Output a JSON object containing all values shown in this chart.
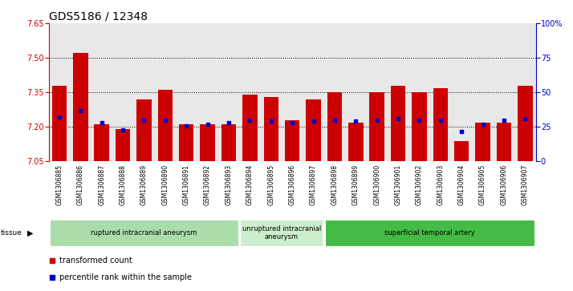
{
  "title": "GDS5186 / 12348",
  "samples": [
    "GSM1306885",
    "GSM1306886",
    "GSM1306887",
    "GSM1306888",
    "GSM1306889",
    "GSM1306890",
    "GSM1306891",
    "GSM1306892",
    "GSM1306893",
    "GSM1306894",
    "GSM1306895",
    "GSM1306896",
    "GSM1306897",
    "GSM1306898",
    "GSM1306899",
    "GSM1306900",
    "GSM1306901",
    "GSM1306902",
    "GSM1306903",
    "GSM1306904",
    "GSM1306905",
    "GSM1306906",
    "GSM1306907"
  ],
  "bar_values": [
    7.38,
    7.52,
    7.21,
    7.19,
    7.32,
    7.36,
    7.21,
    7.21,
    7.21,
    7.34,
    7.33,
    7.23,
    7.32,
    7.35,
    7.22,
    7.35,
    7.38,
    7.35,
    7.37,
    7.14,
    7.22,
    7.22,
    7.38
  ],
  "percentile_values": [
    32,
    37,
    28,
    23,
    30,
    30,
    26,
    27,
    28,
    30,
    29,
    28,
    29,
    30,
    29,
    30,
    31,
    30,
    30,
    22,
    27,
    30,
    31
  ],
  "bar_color": "#cc0000",
  "blue_color": "#0000cc",
  "ymin": 7.05,
  "ymax": 7.65,
  "yticks": [
    7.05,
    7.2,
    7.35,
    7.5,
    7.65
  ],
  "y2ticks": [
    0,
    25,
    50,
    75,
    100
  ],
  "y2labels": [
    "0",
    "25",
    "50",
    "75",
    "100%"
  ],
  "groups": [
    {
      "label": "ruptured intracranial aneurysm",
      "start": 0,
      "end": 9,
      "color": "#aaddaa"
    },
    {
      "label": "unruptured intracranial\naneurysm",
      "start": 9,
      "end": 13,
      "color": "#cceecc"
    },
    {
      "label": "superficial temporal artery",
      "start": 13,
      "end": 23,
      "color": "#44bb44"
    }
  ],
  "tissue_label": "tissue",
  "legend_items": [
    {
      "color": "#cc0000",
      "label": "transformed count"
    },
    {
      "color": "#0000cc",
      "label": "percentile rank within the sample"
    }
  ],
  "background_color": "#e8e8e8",
  "plot_bg": "#ffffff",
  "title_fontsize": 10,
  "tick_fontsize": 7
}
